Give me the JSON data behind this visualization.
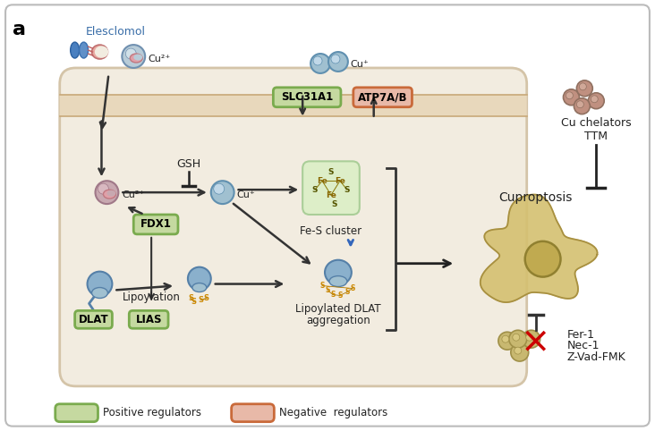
{
  "positive_reg_color": "#7aab4e",
  "positive_reg_fill": "#c5d9a0",
  "negative_reg_color": "#c96a3a",
  "negative_reg_fill": "#e8b9a8",
  "cell_bg": "#f2ece0",
  "cell_border": "#d4c4a8",
  "membrane_color": "#e0cdb0",
  "labels": {
    "panel": "a",
    "elesclomol": "Elesclomol",
    "cu2plus_top": "Cu²⁺",
    "cu_plus_top": "Cu⁺",
    "cu2plus_cell": "Cu²⁺",
    "cu_plus_cell": "Cu⁺",
    "gsh": "GSH",
    "fdx1": "FDX1",
    "dlat": "DLAT",
    "lias": "LIAS",
    "lipoylation": "Lipoylation",
    "slc31a1": "SLC31A1",
    "atp7ab": "ATP7A/B",
    "fes_cluster": "Fe-S cluster",
    "lipoylated_line1": "Lipoylated DLAT",
    "lipoylated_line2": "aggregation",
    "cu_chelators": "Cu chelators",
    "ttm": "TTM",
    "cuproptosis": "Cuproptosis",
    "fer1": "Fer-1",
    "nec1": "Nec-1",
    "zvad": "Z-Vad-FMK",
    "pos_reg_label": "Positive regulators",
    "neg_reg_label": "Negative  regulators"
  }
}
